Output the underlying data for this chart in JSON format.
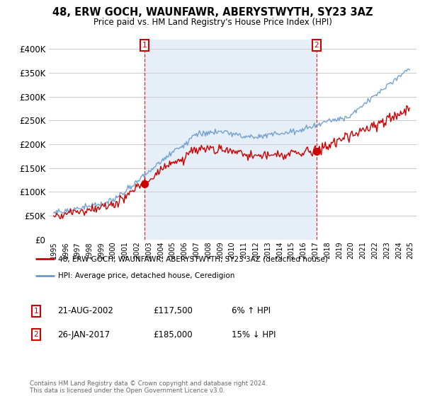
{
  "title": "48, ERW GOCH, WAUNFAWR, ABERYSTWYTH, SY23 3AZ",
  "subtitle": "Price paid vs. HM Land Registry's House Price Index (HPI)",
  "ylim": [
    0,
    420000
  ],
  "yticks": [
    0,
    50000,
    100000,
    150000,
    200000,
    250000,
    300000,
    350000,
    400000
  ],
  "ytick_labels": [
    "£0",
    "£50K",
    "£100K",
    "£150K",
    "£200K",
    "£250K",
    "£300K",
    "£350K",
    "£400K"
  ],
  "legend_line1": "48, ERW GOCH, WAUNFAWR, ABERYSTWYTH, SY23 3AZ (detached house)",
  "legend_line2": "HPI: Average price, detached house, Ceredigion",
  "sale1_label": "1",
  "sale1_date": "21-AUG-2002",
  "sale1_price": "£117,500",
  "sale1_hpi": "6% ↑ HPI",
  "sale2_label": "2",
  "sale2_date": "26-JAN-2017",
  "sale2_price": "£185,000",
  "sale2_hpi": "15% ↓ HPI",
  "footer": "Contains HM Land Registry data © Crown copyright and database right 2024.\nThis data is licensed under the Open Government Licence v3.0.",
  "red_color": "#cc0000",
  "blue_color": "#6699cc",
  "fill_color": "#dce9f5",
  "vline_color": "#cc0000",
  "grid_color": "#cccccc",
  "bg_color": "#ffffff",
  "sale1_year": 2002.625,
  "sale2_year": 2017.083,
  "sale1_price_val": 117500,
  "sale2_price_val": 185000,
  "xstart": 1995,
  "xend": 2025
}
